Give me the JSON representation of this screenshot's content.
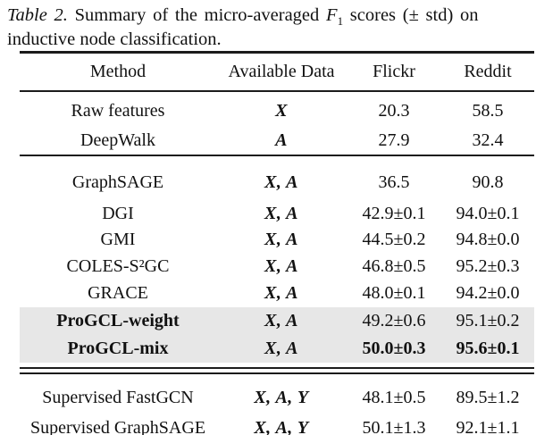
{
  "caption": {
    "tag": "Table 2.",
    "body": "Summary of the micro-averaged",
    "f_var": "F",
    "f_sub": "1",
    "tail": "scores (± std) on",
    "line2": "inductive node classification."
  },
  "table": {
    "headers": [
      "Method",
      "Available Data",
      "Flickr",
      "Reddit"
    ],
    "rows": [
      {
        "method": "Raw features",
        "available_data": "X",
        "flickr": "20.3",
        "reddit": "58.5",
        "group": 1
      },
      {
        "method": "DeepWalk",
        "available_data": "A",
        "flickr": "27.9",
        "reddit": "32.4",
        "group": 1
      },
      {
        "method": "GraphSAGE",
        "available_data": "X, A",
        "flickr": "36.5",
        "reddit": "90.8",
        "group": 2
      },
      {
        "method": "DGI",
        "available_data": "X, A",
        "flickr": "42.9±0.1",
        "reddit": "94.0±0.1",
        "group": 2
      },
      {
        "method": "GMI",
        "available_data": "X, A",
        "flickr": "44.5±0.2",
        "reddit": "94.8±0.0",
        "group": 2
      },
      {
        "method": "COLES-S²GC",
        "available_data": "X, A",
        "flickr": "46.8±0.5",
        "reddit": "95.2±0.3",
        "group": 2
      },
      {
        "method": "GRACE",
        "available_data": "X, A",
        "flickr": "48.0±0.1",
        "reddit": "94.2±0.0",
        "group": 2
      },
      {
        "method": "ProGCL-weight",
        "available_data": "X, A",
        "flickr": "49.2±0.6",
        "reddit": "95.1±0.2",
        "group": 2,
        "highlight": true,
        "method_bold": true
      },
      {
        "method": "ProGCL-mix",
        "available_data": "X, A",
        "flickr": "50.0±0.3",
        "reddit": "95.6±0.1",
        "group": 2,
        "highlight": true,
        "method_bold": true,
        "values_bold": true
      },
      {
        "method": "Supervised FastGCN",
        "available_data": "X, A, Y",
        "flickr": "48.1±0.5",
        "reddit": "89.5±1.2",
        "group": 3
      },
      {
        "method": "Supervised GraphSAGE",
        "available_data": "X, A, Y",
        "flickr": "50.1±1.3",
        "reddit": "92.1±1.1",
        "group": 3,
        "values_underline": true
      }
    ],
    "highlight_color": "#e7e7e7",
    "rule_color": "#1b1b1b"
  }
}
